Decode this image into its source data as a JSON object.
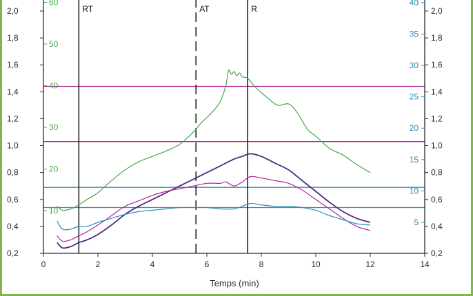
{
  "colors": {
    "frame": "#7fb847",
    "axis": "#2a2a2a",
    "green": "#4aa64a",
    "purple": "#4b2b7f",
    "magenta": "#b0279a",
    "blue": "#2c8dbb",
    "ref_magenta": "#b0279a",
    "ref_blue": "#2c8dbb"
  },
  "chart_data": {
    "type": "line",
    "xlabel": "Temps (min)",
    "xlim": [
      0,
      14
    ],
    "x_ticks": [
      "0",
      "2",
      "4",
      "6",
      "8",
      "10",
      "12",
      "14"
    ],
    "left_axis": {
      "ylim": [
        0.2,
        2.0
      ],
      "ticks": [
        "0,2",
        "0,4",
        "0,6",
        "0,8",
        "1,0",
        "1,2",
        "1,4",
        "1,6",
        "1,8",
        "2,0"
      ]
    },
    "left_green_axis": {
      "ticks": [
        "10",
        "20",
        "30",
        "40",
        "50",
        "60"
      ]
    },
    "right_blue_axis": {
      "ticks": [
        "5",
        "10",
        "15",
        "20",
        "25",
        "30",
        "35",
        "40"
      ]
    },
    "right_axis": {
      "ticks": [
        "0,2",
        "0,4",
        "0,6",
        "0,8",
        "1,0",
        "1,2",
        "1,4",
        "1,6",
        "1,8",
        "2,0"
      ]
    },
    "vertical_markers": [
      {
        "label": "RT",
        "x": 1.3,
        "style": "solid"
      },
      {
        "label": "AT",
        "x": 5.6,
        "style": "dashed"
      },
      {
        "label": "R",
        "x": 7.5,
        "style": "solid"
      }
    ],
    "reference_lines": [
      {
        "y": 1.44,
        "color": "magenta"
      },
      {
        "y": 1.03,
        "color": "magenta"
      },
      {
        "y": 0.69,
        "color": "blue"
      },
      {
        "y": 0.54,
        "color": "blue"
      }
    ],
    "series": [
      {
        "color": "green",
        "x": [
          0.5,
          0.7,
          1.0,
          1.3,
          1.6,
          2.0,
          2.5,
          3.0,
          3.5,
          4.0,
          4.5,
          5.0,
          5.5,
          5.8,
          6.2,
          6.5,
          6.7,
          6.8,
          6.9,
          7.0,
          7.1,
          7.2,
          7.3,
          7.5,
          7.8,
          8.2,
          8.6,
          9.0,
          9.3,
          9.7,
          10.0,
          10.5,
          11.0,
          11.5,
          12.0
        ],
        "y": [
          0.55,
          0.52,
          0.53,
          0.56,
          0.6,
          0.65,
          0.74,
          0.82,
          0.88,
          0.92,
          0.96,
          1.01,
          1.1,
          1.17,
          1.25,
          1.33,
          1.45,
          1.56,
          1.53,
          1.55,
          1.52,
          1.54,
          1.51,
          1.5,
          1.43,
          1.36,
          1.3,
          1.31,
          1.25,
          1.12,
          1.07,
          0.98,
          0.93,
          0.86,
          0.8
        ]
      },
      {
        "color": "purple",
        "x": [
          0.5,
          0.7,
          1.0,
          1.3,
          1.6,
          2.0,
          2.5,
          3.0,
          3.5,
          4.0,
          4.5,
          5.0,
          5.5,
          6.0,
          6.5,
          7.0,
          7.3,
          7.6,
          8.0,
          8.5,
          9.0,
          9.5,
          10.0,
          10.5,
          11.0,
          11.5,
          12.0
        ],
        "y": [
          0.28,
          0.24,
          0.25,
          0.28,
          0.3,
          0.34,
          0.41,
          0.49,
          0.55,
          0.6,
          0.65,
          0.7,
          0.75,
          0.8,
          0.85,
          0.9,
          0.92,
          0.94,
          0.92,
          0.87,
          0.82,
          0.74,
          0.66,
          0.58,
          0.51,
          0.46,
          0.43
        ]
      },
      {
        "color": "magenta",
        "x": [
          0.5,
          0.7,
          1.0,
          1.3,
          1.6,
          2.0,
          2.5,
          3.0,
          3.5,
          4.0,
          4.5,
          5.0,
          5.5,
          6.0,
          6.5,
          6.7,
          7.0,
          7.3,
          7.6,
          8.0,
          8.5,
          9.0,
          9.5,
          10.0,
          10.5,
          11.0,
          11.5,
          12.0
        ],
        "y": [
          0.33,
          0.29,
          0.3,
          0.33,
          0.36,
          0.41,
          0.48,
          0.55,
          0.59,
          0.63,
          0.66,
          0.68,
          0.7,
          0.72,
          0.72,
          0.73,
          0.7,
          0.73,
          0.77,
          0.76,
          0.74,
          0.72,
          0.67,
          0.6,
          0.53,
          0.46,
          0.4,
          0.37
        ]
      },
      {
        "color": "blue",
        "x": [
          0.5,
          0.7,
          1.0,
          1.3,
          1.6,
          2.0,
          2.5,
          3.0,
          3.5,
          4.0,
          4.5,
          5.0,
          5.5,
          6.0,
          6.5,
          7.0,
          7.3,
          7.6,
          8.0,
          8.5,
          9.0,
          9.5,
          10.0,
          10.5,
          11.0,
          11.5,
          12.0
        ],
        "y": [
          0.44,
          0.38,
          0.38,
          0.4,
          0.4,
          0.43,
          0.46,
          0.49,
          0.51,
          0.52,
          0.53,
          0.54,
          0.54,
          0.54,
          0.53,
          0.53,
          0.55,
          0.57,
          0.56,
          0.55,
          0.55,
          0.54,
          0.52,
          0.48,
          0.45,
          0.42,
          0.41
        ]
      }
    ]
  }
}
